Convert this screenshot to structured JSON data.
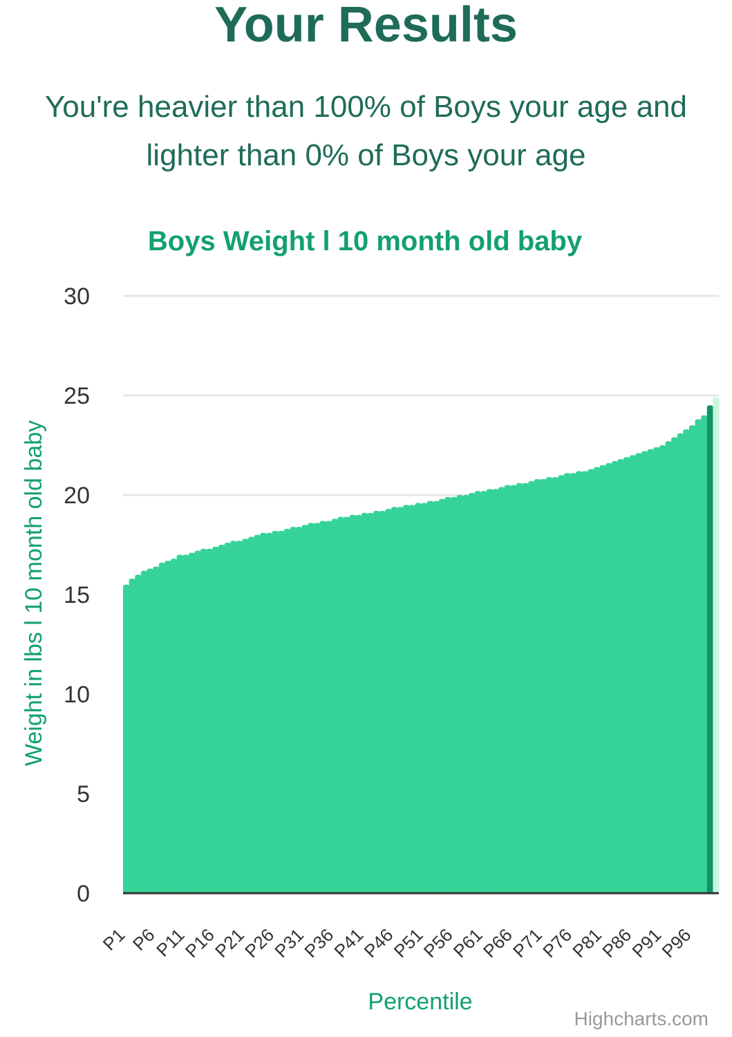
{
  "page": {
    "title": "Your Results",
    "summary_line1": "You're heavier than 100% of Boys your age and",
    "summary_line2": "lighter than 0% of Boys your age",
    "credit": "Highcharts.com"
  },
  "colors": {
    "heading": "#1e6b58",
    "accent": "#12a070",
    "bar": "#36d399",
    "highlight_bar": "#0e9468",
    "grid": "#e6e6e6"
  },
  "chart_data": {
    "type": "bar",
    "title": "Boys Weight l 10 month old baby",
    "xlabel": "Percentile",
    "ylabel": "Weight in lbs l 10 month old baby",
    "ylim": [
      0,
      30
    ],
    "yticks": [
      0,
      5,
      10,
      15,
      20,
      25,
      30
    ],
    "grid": true,
    "legend": "none",
    "highlight_category": "P99",
    "categories": [
      "P1",
      "P2",
      "P3",
      "P4",
      "P5",
      "P6",
      "P7",
      "P8",
      "P9",
      "P10",
      "P11",
      "P12",
      "P13",
      "P14",
      "P15",
      "P16",
      "P17",
      "P18",
      "P19",
      "P20",
      "P21",
      "P22",
      "P23",
      "P24",
      "P25",
      "P26",
      "P27",
      "P28",
      "P29",
      "P30",
      "P31",
      "P32",
      "P33",
      "P34",
      "P35",
      "P36",
      "P37",
      "P38",
      "P39",
      "P40",
      "P41",
      "P42",
      "P43",
      "P44",
      "P45",
      "P46",
      "P47",
      "P48",
      "P49",
      "P50",
      "P51",
      "P52",
      "P53",
      "P54",
      "P55",
      "P56",
      "P57",
      "P58",
      "P59",
      "P60",
      "P61",
      "P62",
      "P63",
      "P64",
      "P65",
      "P66",
      "P67",
      "P68",
      "P69",
      "P70",
      "P71",
      "P72",
      "P73",
      "P74",
      "P75",
      "P76",
      "P77",
      "P78",
      "P79",
      "P80",
      "P81",
      "P82",
      "P83",
      "P84",
      "P85",
      "P86",
      "P87",
      "P88",
      "P89",
      "P90",
      "P91",
      "P92",
      "P93",
      "P94",
      "P95",
      "P96",
      "P97",
      "P98",
      "P99",
      "P100"
    ],
    "tick_labels": [
      "P1",
      "P6",
      "P11",
      "P16",
      "P21",
      "P26",
      "P31",
      "P36",
      "P41",
      "P46",
      "P51",
      "P56",
      "P61",
      "P66",
      "P71",
      "P76",
      "P81",
      "P86",
      "P91",
      "P96"
    ],
    "values": [
      15.5,
      15.8,
      16.0,
      16.2,
      16.3,
      16.4,
      16.6,
      16.7,
      16.8,
      17.0,
      17.0,
      17.1,
      17.2,
      17.3,
      17.3,
      17.4,
      17.5,
      17.6,
      17.7,
      17.7,
      17.8,
      17.9,
      18.0,
      18.1,
      18.1,
      18.2,
      18.2,
      18.3,
      18.4,
      18.4,
      18.5,
      18.6,
      18.6,
      18.7,
      18.7,
      18.8,
      18.9,
      18.9,
      19.0,
      19.0,
      19.1,
      19.1,
      19.2,
      19.2,
      19.3,
      19.4,
      19.4,
      19.5,
      19.5,
      19.6,
      19.6,
      19.7,
      19.7,
      19.8,
      19.9,
      19.9,
      20.0,
      20.0,
      20.1,
      20.2,
      20.2,
      20.3,
      20.3,
      20.4,
      20.5,
      20.5,
      20.6,
      20.6,
      20.7,
      20.8,
      20.8,
      20.9,
      20.9,
      21.0,
      21.1,
      21.1,
      21.2,
      21.2,
      21.3,
      21.4,
      21.5,
      21.6,
      21.7,
      21.8,
      21.9,
      22.0,
      22.1,
      22.2,
      22.3,
      22.4,
      22.5,
      22.7,
      22.9,
      23.1,
      23.3,
      23.5,
      23.8,
      24.0,
      24.5,
      24.9
    ]
  }
}
